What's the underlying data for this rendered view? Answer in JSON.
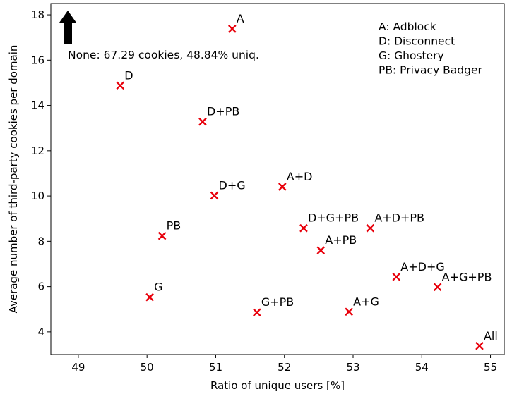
{
  "chart_data": {
    "type": "scatter",
    "xlabel": "Ratio of unique users [%]",
    "ylabel": "Average number of third-party cookies per domain",
    "xlim": [
      48.6,
      55.2
    ],
    "ylim": [
      3.0,
      18.5
    ],
    "xticks": [
      "49",
      "50",
      "51",
      "52",
      "53",
      "54",
      "55"
    ],
    "yticks": [
      "4",
      "6",
      "8",
      "10",
      "12",
      "14",
      "16",
      "18"
    ],
    "grid": false,
    "marker": "x",
    "marker_color": "#e8000b",
    "points": [
      {
        "label": "A",
        "x": 51.24,
        "y": 17.38
      },
      {
        "label": "D",
        "x": 49.61,
        "y": 14.88
      },
      {
        "label": "D+PB",
        "x": 50.81,
        "y": 13.28
      },
      {
        "label": "A+D",
        "x": 51.97,
        "y": 10.41
      },
      {
        "label": "D+G",
        "x": 50.98,
        "y": 10.02
      },
      {
        "label": "D+G+PB",
        "x": 52.28,
        "y": 8.58
      },
      {
        "label": "A+D+PB",
        "x": 53.25,
        "y": 8.58
      },
      {
        "label": "PB",
        "x": 50.22,
        "y": 8.24
      },
      {
        "label": "A+PB",
        "x": 52.53,
        "y": 7.6
      },
      {
        "label": "A+D+G",
        "x": 53.63,
        "y": 6.43
      },
      {
        "label": "A+G+PB",
        "x": 54.23,
        "y": 5.98
      },
      {
        "label": "G",
        "x": 50.04,
        "y": 5.53
      },
      {
        "label": "A+G",
        "x": 52.94,
        "y": 4.89
      },
      {
        "label": "G+PB",
        "x": 51.6,
        "y": 4.86
      },
      {
        "label": "All",
        "x": 54.84,
        "y": 3.38
      }
    ],
    "legend": {
      "placement": "top-right",
      "entries": [
        "A: Adblock",
        "D: Disconnect",
        "G: Ghostery",
        "PB: Privacy Badger"
      ]
    },
    "annotation": {
      "text": "None: 67.29 cookies, 48.84% uniq.",
      "arrow": "up"
    }
  }
}
